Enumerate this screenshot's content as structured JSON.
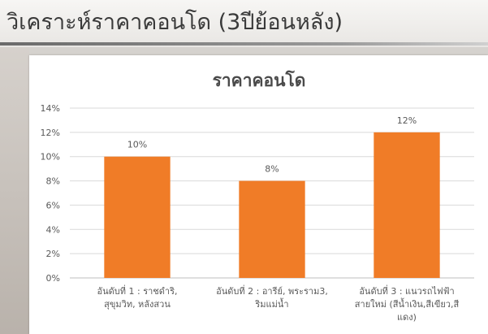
{
  "slide": {
    "title": "วิเคราะห์ราคาคอนโด (3ปีย้อนหลัง)"
  },
  "colors": {
    "bar": "#f07c27",
    "grid": "#d9d9d9",
    "axis_text": "#595959",
    "title_text": "#4a4a4a"
  },
  "chart_data": {
    "type": "bar",
    "title": "ราคาคอนโด",
    "xlabel": "",
    "ylabel": "",
    "ylim": [
      0,
      14
    ],
    "y_ticks": [
      "0%",
      "2%",
      "4%",
      "6%",
      "8%",
      "10%",
      "12%",
      "14%"
    ],
    "grid": true,
    "legend": "none",
    "categories": [
      [
        "อันดับที่ 1 : ราชดำริ,",
        "สุขุมวิท, หลังสวน"
      ],
      [
        "อันดับที่ 2 : อารีย์, พระราม3,",
        "ริมแม่น้ำ"
      ],
      [
        "อันดับที่ 3 : แนวรถไฟฟ้า",
        "สายใหม่ (สีน้ำเงิน,สีเขียว,สี",
        "แดง)"
      ]
    ],
    "values": [
      10,
      8,
      12
    ],
    "data_labels": [
      "10%",
      "8%",
      "12%"
    ]
  }
}
